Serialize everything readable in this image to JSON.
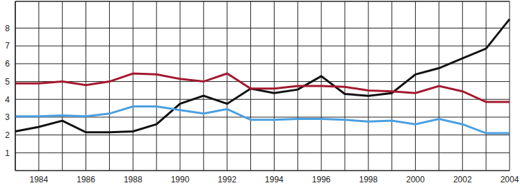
{
  "chart_data": {
    "type": "line",
    "categories": [
      null,
      "1984",
      null,
      "1986",
      null,
      "1988",
      null,
      "1990",
      null,
      "1992",
      null,
      "1994",
      null,
      "1996",
      null,
      "1998",
      null,
      "2000",
      null,
      "2002",
      null,
      "2004"
    ],
    "series": [
      {
        "color": "#111111",
        "values": [
          2.2,
          2.45,
          2.8,
          2.15,
          2.15,
          2.2,
          2.6,
          3.75,
          4.2,
          3.75,
          4.6,
          4.35,
          4.55,
          5.3,
          4.3,
          4.2,
          4.35,
          5.4,
          5.75,
          6.3,
          6.85,
          8.5
        ]
      },
      {
        "color": "#a3192f",
        "values": [
          4.9,
          4.9,
          5.0,
          4.8,
          5.0,
          5.45,
          5.4,
          5.15,
          5.0,
          5.45,
          4.6,
          4.6,
          4.75,
          4.75,
          4.7,
          4.5,
          4.45,
          4.35,
          4.75,
          4.45,
          3.85,
          3.85
        ]
      },
      {
        "color": "#4a9fe0",
        "values": [
          3.05,
          3.05,
          3.1,
          3.05,
          3.2,
          3.6,
          3.6,
          3.4,
          3.2,
          3.45,
          2.85,
          2.85,
          2.9,
          2.9,
          2.85,
          2.75,
          2.8,
          2.6,
          2.9,
          2.6,
          2.1,
          2.1
        ]
      }
    ],
    "ylim": [
      0,
      9.5
    ],
    "yticks": [
      1,
      2,
      3,
      4,
      5,
      6,
      7,
      8
    ],
    "grid": true
  }
}
